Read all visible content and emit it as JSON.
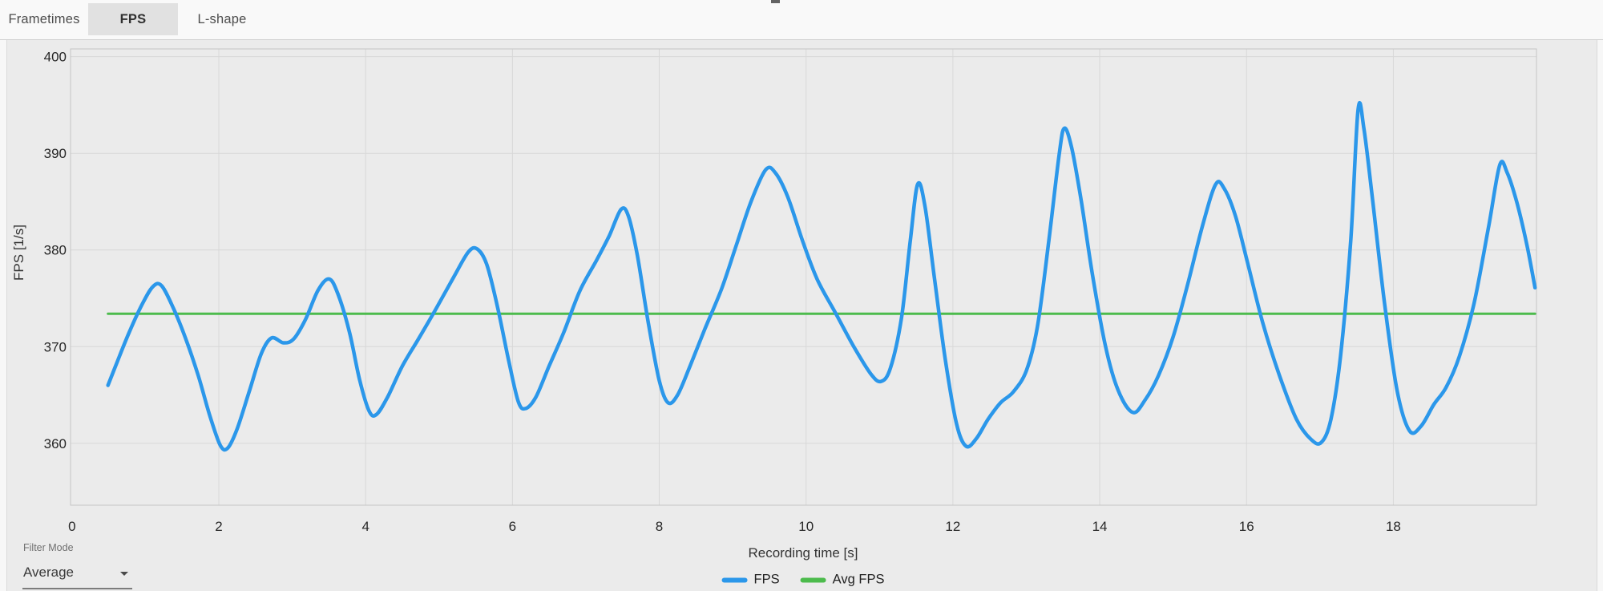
{
  "tabs": [
    {
      "label": "Frametimes",
      "selected": false
    },
    {
      "label": "FPS",
      "selected": true
    },
    {
      "label": "L-shape",
      "selected": false
    }
  ],
  "filter": {
    "label": "Filter Mode",
    "value": "Average"
  },
  "colors": {
    "fps_line": "#2b97ea",
    "avg_line": "#4cbb4c",
    "panel_bg": "#ebebeb",
    "gridline": "#d8d8d8",
    "plot_border": "#c4c4c4",
    "tick_text": "#272727"
  },
  "chart_data": {
    "type": "line",
    "xlabel": "Recording time [s]",
    "ylabel": "FPS [1/s]",
    "xlim": [
      -0.02,
      19.95
    ],
    "ylim": [
      353.6,
      400.8
    ],
    "x_ticks": [
      0,
      2,
      4,
      6,
      8,
      10,
      12,
      14,
      16,
      18
    ],
    "y_ticks": [
      360,
      370,
      380,
      390,
      400
    ],
    "grid": true,
    "legend_position": "bottom-center",
    "avg_fps": 373.4,
    "series": [
      {
        "name": "FPS",
        "color": "#2b97ea",
        "width": 4.5,
        "points": [
          [
            0.49,
            366.0
          ],
          [
            0.62,
            368.5
          ],
          [
            0.78,
            371.5
          ],
          [
            0.95,
            374.3
          ],
          [
            1.1,
            376.2
          ],
          [
            1.22,
            376.3
          ],
          [
            1.38,
            374.0
          ],
          [
            1.55,
            370.8
          ],
          [
            1.72,
            367.0
          ],
          [
            1.88,
            362.8
          ],
          [
            2.02,
            359.8
          ],
          [
            2.12,
            359.5
          ],
          [
            2.25,
            361.5
          ],
          [
            2.42,
            365.5
          ],
          [
            2.58,
            369.3
          ],
          [
            2.72,
            370.9
          ],
          [
            2.88,
            370.4
          ],
          [
            3.02,
            370.8
          ],
          [
            3.18,
            372.8
          ],
          [
            3.35,
            375.8
          ],
          [
            3.5,
            377.0
          ],
          [
            3.62,
            375.5
          ],
          [
            3.78,
            371.5
          ],
          [
            3.92,
            366.5
          ],
          [
            4.05,
            363.3
          ],
          [
            4.15,
            363.0
          ],
          [
            4.3,
            364.8
          ],
          [
            4.5,
            368.0
          ],
          [
            4.72,
            370.8
          ],
          [
            4.95,
            373.8
          ],
          [
            5.2,
            377.2
          ],
          [
            5.4,
            379.8
          ],
          [
            5.52,
            380.1
          ],
          [
            5.65,
            378.5
          ],
          [
            5.8,
            374.0
          ],
          [
            5.95,
            368.5
          ],
          [
            6.08,
            364.3
          ],
          [
            6.18,
            363.6
          ],
          [
            6.32,
            364.8
          ],
          [
            6.5,
            368.0
          ],
          [
            6.7,
            371.5
          ],
          [
            6.92,
            375.8
          ],
          [
            7.15,
            379.0
          ],
          [
            7.32,
            381.5
          ],
          [
            7.48,
            384.2
          ],
          [
            7.58,
            383.5
          ],
          [
            7.7,
            379.5
          ],
          [
            7.85,
            372.5
          ],
          [
            8.0,
            366.5
          ],
          [
            8.12,
            364.2
          ],
          [
            8.25,
            365.0
          ],
          [
            8.42,
            368.0
          ],
          [
            8.62,
            371.8
          ],
          [
            8.85,
            376.0
          ],
          [
            9.05,
            380.5
          ],
          [
            9.25,
            385.0
          ],
          [
            9.45,
            388.3
          ],
          [
            9.58,
            388.0
          ],
          [
            9.75,
            385.5
          ],
          [
            9.95,
            381.0
          ],
          [
            10.15,
            377.0
          ],
          [
            10.4,
            373.5
          ],
          [
            10.65,
            370.0
          ],
          [
            10.88,
            367.2
          ],
          [
            11.02,
            366.4
          ],
          [
            11.15,
            367.8
          ],
          [
            11.3,
            373.0
          ],
          [
            11.42,
            381.0
          ],
          [
            11.52,
            386.8
          ],
          [
            11.62,
            384.5
          ],
          [
            11.75,
            377.0
          ],
          [
            11.9,
            368.5
          ],
          [
            12.05,
            362.0
          ],
          [
            12.18,
            359.7
          ],
          [
            12.32,
            360.5
          ],
          [
            12.48,
            362.5
          ],
          [
            12.65,
            364.2
          ],
          [
            12.82,
            365.3
          ],
          [
            13.0,
            367.5
          ],
          [
            13.15,
            372.0
          ],
          [
            13.3,
            380.5
          ],
          [
            13.45,
            390.0
          ],
          [
            13.52,
            392.6
          ],
          [
            13.62,
            390.5
          ],
          [
            13.75,
            385.0
          ],
          [
            13.9,
            377.5
          ],
          [
            14.08,
            370.0
          ],
          [
            14.25,
            365.5
          ],
          [
            14.45,
            363.2
          ],
          [
            14.62,
            364.5
          ],
          [
            14.8,
            367.0
          ],
          [
            15.0,
            371.0
          ],
          [
            15.2,
            376.5
          ],
          [
            15.4,
            382.5
          ],
          [
            15.58,
            386.8
          ],
          [
            15.7,
            386.3
          ],
          [
            15.85,
            383.5
          ],
          [
            16.02,
            378.5
          ],
          [
            16.22,
            372.5
          ],
          [
            16.45,
            367.0
          ],
          [
            16.68,
            362.5
          ],
          [
            16.88,
            360.4
          ],
          [
            17.02,
            360.1
          ],
          [
            17.15,
            362.5
          ],
          [
            17.28,
            369.0
          ],
          [
            17.42,
            381.0
          ],
          [
            17.52,
            394.5
          ],
          [
            17.6,
            392.5
          ],
          [
            17.72,
            385.0
          ],
          [
            17.88,
            374.5
          ],
          [
            18.05,
            365.5
          ],
          [
            18.22,
            361.3
          ],
          [
            18.38,
            361.8
          ],
          [
            18.55,
            364.0
          ],
          [
            18.72,
            365.8
          ],
          [
            18.9,
            369.0
          ],
          [
            19.1,
            374.5
          ],
          [
            19.3,
            382.5
          ],
          [
            19.45,
            388.8
          ],
          [
            19.55,
            388.0
          ],
          [
            19.68,
            385.0
          ],
          [
            19.82,
            380.5
          ],
          [
            19.93,
            376.1
          ]
        ]
      },
      {
        "name": "Avg FPS",
        "color": "#4cbb4c",
        "width": 3,
        "points": [
          [
            0.49,
            373.4
          ],
          [
            19.93,
            373.4
          ]
        ]
      }
    ]
  }
}
